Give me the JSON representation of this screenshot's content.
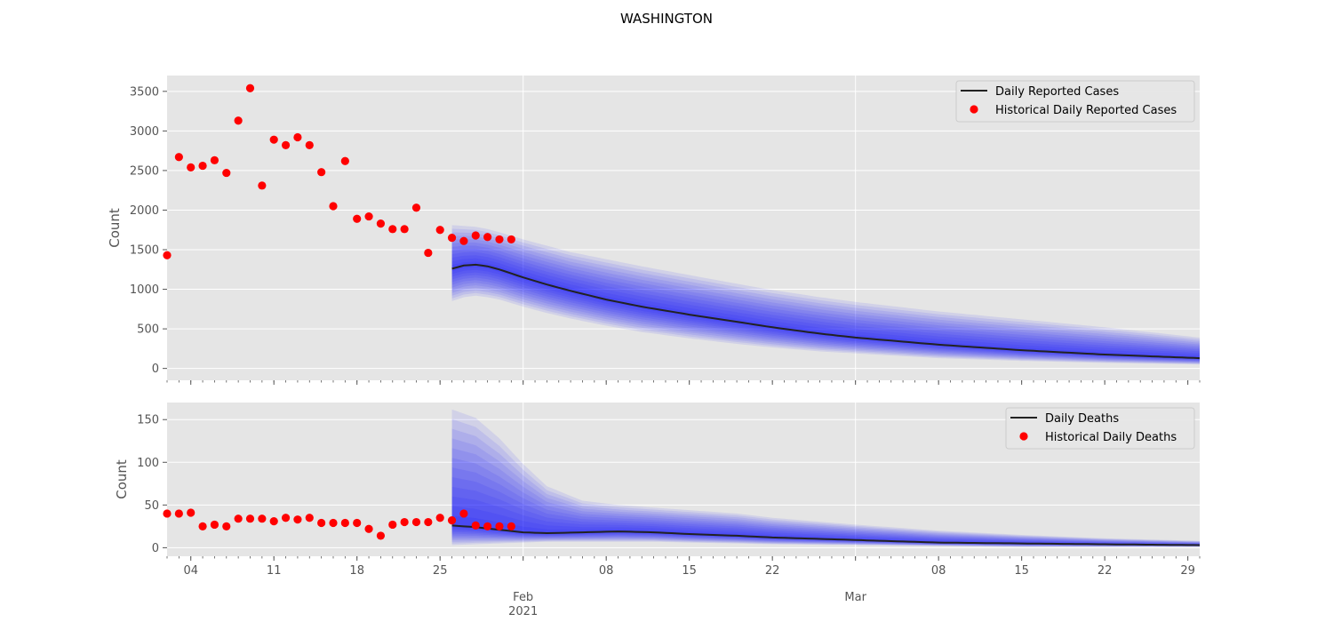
{
  "title": "WASHINGTON",
  "x_axis": {
    "start": "2021-01-02",
    "end": "2021-03-30",
    "tick_labels": [
      {
        "date": "2021-01-04",
        "label": "04"
      },
      {
        "date": "2021-01-11",
        "label": "11"
      },
      {
        "date": "2021-01-18",
        "label": "18"
      },
      {
        "date": "2021-01-25",
        "label": "25"
      },
      {
        "date": "2021-02-01",
        "label": "Feb",
        "sublabel": "2021"
      },
      {
        "date": "2021-02-08",
        "label": "08"
      },
      {
        "date": "2021-02-15",
        "label": "15"
      },
      {
        "date": "2021-02-22",
        "label": "22"
      },
      {
        "date": "2021-03-01",
        "label": "Mar"
      },
      {
        "date": "2021-03-08",
        "label": "08"
      },
      {
        "date": "2021-03-15",
        "label": "15"
      },
      {
        "date": "2021-03-22",
        "label": "22"
      },
      {
        "date": "2021-03-29",
        "label": "29"
      }
    ],
    "major_grid": [
      "2021-02-01",
      "2021-03-01"
    ]
  },
  "colors": {
    "background": "#e5e5e5",
    "historical": "#ff0000",
    "forecast_line": "#222222",
    "band": "#0000ff"
  },
  "chart_data": [
    {
      "type": "line",
      "ylabel": "Count",
      "ylim": [
        -150,
        3700
      ],
      "yticks": [
        0,
        500,
        1000,
        1500,
        2000,
        2500,
        3000,
        3500
      ],
      "grid": true,
      "legend_position": "top-right",
      "legend": [
        "Daily Reported Cases",
        "Historical Daily Reported Cases"
      ],
      "historical": {
        "name": "Historical Daily Reported Cases",
        "x": [
          "2021-01-02",
          "2021-01-03",
          "2021-01-04",
          "2021-01-05",
          "2021-01-06",
          "2021-01-07",
          "2021-01-08",
          "2021-01-09",
          "2021-01-10",
          "2021-01-11",
          "2021-01-12",
          "2021-01-13",
          "2021-01-14",
          "2021-01-15",
          "2021-01-16",
          "2021-01-17",
          "2021-01-18",
          "2021-01-19",
          "2021-01-20",
          "2021-01-21",
          "2021-01-22",
          "2021-01-23",
          "2021-01-24",
          "2021-01-25",
          "2021-01-26",
          "2021-01-27",
          "2021-01-28",
          "2021-01-29",
          "2021-01-30",
          "2021-01-31"
        ],
        "y": [
          1430,
          2670,
          2540,
          2560,
          2630,
          2470,
          3130,
          3540,
          2310,
          2890,
          2820,
          2920,
          2820,
          2480,
          2050,
          2620,
          1890,
          1920,
          1830,
          1760,
          1760,
          2030,
          1460,
          1750,
          1650,
          1610,
          1680,
          1660,
          1630,
          1630
        ]
      },
      "forecast": {
        "name": "Daily Reported Cases",
        "x": [
          "2021-01-26",
          "2021-01-27",
          "2021-01-28",
          "2021-01-29",
          "2021-01-30",
          "2021-02-01",
          "2021-02-03",
          "2021-02-05",
          "2021-02-08",
          "2021-02-11",
          "2021-02-15",
          "2021-02-19",
          "2021-02-22",
          "2021-02-26",
          "2021-03-01",
          "2021-03-08",
          "2021-03-15",
          "2021-03-22",
          "2021-03-30"
        ],
        "y": [
          1260,
          1300,
          1310,
          1290,
          1250,
          1150,
          1060,
          980,
          870,
          780,
          680,
          590,
          520,
          440,
          390,
          300,
          230,
          175,
          130
        ],
        "lower": [
          850,
          900,
          920,
          900,
          870,
          780,
          700,
          630,
          540,
          460,
          380,
          310,
          265,
          215,
          190,
          130,
          95,
          70,
          50
        ],
        "upper": [
          1810,
          1800,
          1790,
          1760,
          1720,
          1630,
          1550,
          1470,
          1380,
          1290,
          1180,
          1070,
          990,
          900,
          840,
          720,
          620,
          520,
          390
        ]
      }
    },
    {
      "type": "line",
      "ylabel": "Count",
      "ylim": [
        -10,
        170
      ],
      "yticks": [
        0,
        50,
        100,
        150
      ],
      "grid": true,
      "legend_position": "top-right",
      "legend": [
        "Daily Deaths",
        "Historical Daily Deaths"
      ],
      "historical": {
        "name": "Historical Daily Deaths",
        "x": [
          "2021-01-02",
          "2021-01-03",
          "2021-01-04",
          "2021-01-05",
          "2021-01-06",
          "2021-01-07",
          "2021-01-08",
          "2021-01-09",
          "2021-01-10",
          "2021-01-11",
          "2021-01-12",
          "2021-01-13",
          "2021-01-14",
          "2021-01-15",
          "2021-01-16",
          "2021-01-17",
          "2021-01-18",
          "2021-01-19",
          "2021-01-20",
          "2021-01-21",
          "2021-01-22",
          "2021-01-23",
          "2021-01-24",
          "2021-01-25",
          "2021-01-26",
          "2021-01-27",
          "2021-01-28",
          "2021-01-29",
          "2021-01-30",
          "2021-01-31"
        ],
        "y": [
          40,
          40,
          41,
          25,
          27,
          25,
          34,
          34,
          34,
          31,
          35,
          33,
          35,
          29,
          29,
          29,
          29,
          22,
          14,
          27,
          30,
          30,
          30,
          35,
          32,
          40,
          26,
          25,
          25,
          25
        ]
      },
      "forecast": {
        "name": "Daily Deaths",
        "x": [
          "2021-01-26",
          "2021-01-28",
          "2021-01-30",
          "2021-02-01",
          "2021-02-03",
          "2021-02-06",
          "2021-02-09",
          "2021-02-12",
          "2021-02-15",
          "2021-02-19",
          "2021-02-22",
          "2021-03-01",
          "2021-03-08",
          "2021-03-15",
          "2021-03-22",
          "2021-03-30"
        ],
        "y": [
          26,
          24,
          21,
          18,
          17,
          18,
          19,
          18,
          16,
          14,
          12,
          9,
          6,
          5,
          4,
          3
        ],
        "lower": [
          3,
          4,
          5,
          6,
          7,
          7,
          7,
          7,
          6,
          5,
          4,
          3,
          2,
          1,
          1,
          1
        ],
        "upper": [
          162,
          152,
          128,
          98,
          72,
          55,
          50,
          47,
          44,
          40,
          35,
          27,
          20,
          15,
          11,
          8
        ]
      }
    }
  ]
}
